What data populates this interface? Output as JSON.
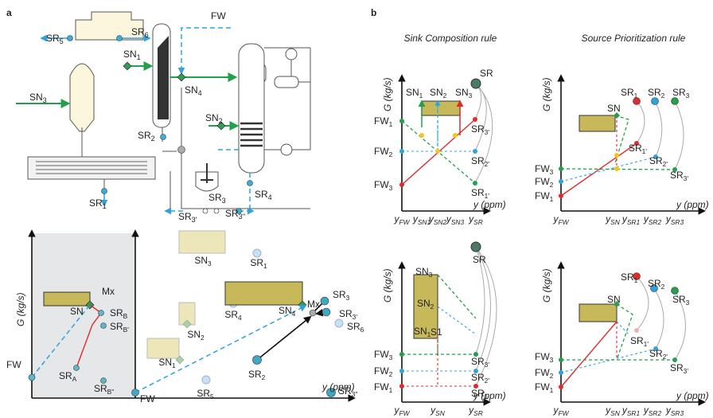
{
  "panel_a": {
    "label": "a",
    "flowsheet_labels": [
      "FW",
      "SR5",
      "SR6",
      "SN1",
      "SN3",
      "SN4",
      "SN2",
      "SR2",
      "SR1",
      "SR3",
      "SR3'",
      "SR3''",
      "SR4"
    ],
    "plot": {
      "y_axis_label": "G (kg/s)",
      "x_axis_label": "y (ppm)",
      "labels": [
        "SN3",
        "SR1",
        "SN",
        "Mx",
        "SRB",
        "SRB'",
        "SN2",
        "SR4",
        "SN4",
        "Mx",
        "SR3",
        "SR3'",
        "SR6",
        "SN1",
        "FW",
        "SRA",
        "SRB''",
        "SR5",
        "FW",
        "SR2",
        "SR3''"
      ]
    }
  },
  "panel_b": {
    "label": "b",
    "titles": [
      "Sink Composition rule",
      "Source Prioritization rule"
    ],
    "diagrams": [
      {
        "y_axis_label": "G (kg/s)",
        "x_axis_label": "y (ppm)",
        "x_ticks": [
          "yFW",
          "ySN1",
          "ySN2",
          "ySN3",
          "ySR"
        ],
        "labels": [
          "SR",
          "SN1",
          "SN2",
          "SN3",
          "FW1",
          "FW2",
          "FW3",
          "SR3'",
          "SR2'",
          "SR1'"
        ]
      },
      {
        "y_axis_label": "G (kg/s)",
        "x_axis_label": "y (ppm)",
        "x_ticks": [
          "yFW",
          "ySN",
          "ySR1",
          "ySR2",
          "ySR3"
        ],
        "labels": [
          "SR1",
          "SR2",
          "SR3",
          "SN",
          "SR1'",
          "SR2'",
          "SR3'",
          "FW3",
          "FW2",
          "FW1"
        ]
      },
      {
        "y_axis_label": "G (kg/s)",
        "x_axis_label": "y (ppm)",
        "x_ticks": [
          "yFW",
          "ySN",
          "ySR"
        ],
        "labels": [
          "SR",
          "SN3",
          "SN2",
          "SN1",
          "S1",
          "FW3",
          "FW2",
          "FW1",
          "SR3'",
          "SR2'",
          "SR1'"
        ]
      },
      {
        "y_axis_label": "G (kg/s)",
        "x_axis_label": "y (ppm)",
        "x_ticks": [
          "yFW",
          "ySN",
          "ySR1",
          "ySR2",
          "ySR3"
        ],
        "labels": [
          "SR1",
          "SR2",
          "SR3",
          "SN",
          "SR1'",
          "SR2'",
          "SR3'",
          "FW3",
          "FW2",
          "FW1"
        ]
      }
    ]
  }
}
